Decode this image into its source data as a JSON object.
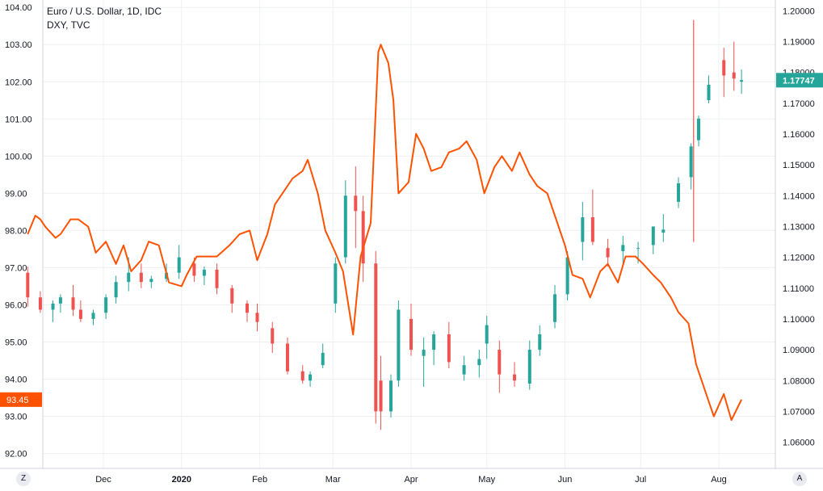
{
  "legend": {
    "title": "Euro / U.S. Dollar, 1D, IDC",
    "subtitle": "DXY, TVC"
  },
  "buttons": {
    "left": "Z",
    "right": "A"
  },
  "colors": {
    "up": "#26a69a",
    "down": "#ef5350",
    "dxy_line": "#ff5200",
    "grid": "#eef0f3",
    "axis_line": "#d1d4dc"
  },
  "chart_data": {
    "type": "line",
    "x_tick_labels": [
      "Dec",
      "2020",
      "Feb",
      "Mar",
      "Apr",
      "May",
      "Jun",
      "Jul",
      "Aug"
    ],
    "left_axis": {
      "label": "",
      "ticks": [
        "104.00",
        "103.00",
        "102.00",
        "101.00",
        "100.00",
        "99.00",
        "98.00",
        "97.00",
        "96.00",
        "95.00",
        "94.00",
        "93.00",
        "92.00"
      ],
      "ylim": [
        91.6,
        104.2
      ],
      "last_value_label": "93.45",
      "last_value": 93.45
    },
    "right_axis": {
      "label": "",
      "ticks": [
        "1.20000",
        "1.19000",
        "1.18000",
        "1.17000",
        "1.16000",
        "1.15000",
        "1.14000",
        "1.13000",
        "1.12000",
        "1.11000",
        "1.10000",
        "1.09000",
        "1.08000",
        "1.07000",
        "1.06000"
      ],
      "ylim": [
        1.0515,
        1.2035
      ],
      "last_value_label": "1.17747",
      "last_value": 1.17747
    },
    "series": [
      {
        "name": "DXY, TVC",
        "axis": "left",
        "kind": "line",
        "x": [
          "2019-11-01",
          "2019-11-04",
          "2019-11-06",
          "2019-11-08",
          "2019-11-12",
          "2019-11-14",
          "2019-11-18",
          "2019-11-21",
          "2019-11-25",
          "2019-11-28",
          "2019-12-02",
          "2019-12-06",
          "2019-12-09",
          "2019-12-12",
          "2019-12-16",
          "2019-12-19",
          "2019-12-23",
          "2019-12-27",
          "2020-01-01",
          "2020-01-03",
          "2020-01-07",
          "2020-01-10",
          "2020-01-15",
          "2020-01-20",
          "2020-01-24",
          "2020-01-28",
          "2020-01-31",
          "2020-02-04",
          "2020-02-07",
          "2020-02-11",
          "2020-02-14",
          "2020-02-18",
          "2020-02-20",
          "2020-02-24",
          "2020-02-27",
          "2020-03-02",
          "2020-03-05",
          "2020-03-09",
          "2020-03-12",
          "2020-03-16",
          "2020-03-19",
          "2020-03-20",
          "2020-03-23",
          "2020-03-25",
          "2020-03-27",
          "2020-03-31",
          "2020-04-03",
          "2020-04-06",
          "2020-04-09",
          "2020-04-13",
          "2020-04-16",
          "2020-04-20",
          "2020-04-23",
          "2020-04-27",
          "2020-04-30",
          "2020-05-04",
          "2020-05-07",
          "2020-05-11",
          "2020-05-14",
          "2020-05-18",
          "2020-05-21",
          "2020-05-25",
          "2020-05-28",
          "2020-06-01",
          "2020-06-04",
          "2020-06-08",
          "2020-06-11",
          "2020-06-15",
          "2020-06-18",
          "2020-06-22",
          "2020-06-25",
          "2020-06-29",
          "2020-07-02",
          "2020-07-06",
          "2020-07-09",
          "2020-07-13",
          "2020-07-16",
          "2020-07-20",
          "2020-07-23",
          "2020-07-27",
          "2020-07-30",
          "2020-08-03",
          "2020-08-06",
          "2020-08-10"
        ],
        "values": [
          97.9,
          98.4,
          98.3,
          98.1,
          97.8,
          97.9,
          98.3,
          98.3,
          98.1,
          97.4,
          97.7,
          97.1,
          97.6,
          96.9,
          97.2,
          97.7,
          97.6,
          96.6,
          96.5,
          96.8,
          97.3,
          97.3,
          97.3,
          97.6,
          97.9,
          98.0,
          97.2,
          97.9,
          98.7,
          99.1,
          99.4,
          99.6,
          99.9,
          99.0,
          98.0,
          97.4,
          96.9,
          95.2,
          97.3,
          98.2,
          102.8,
          103.0,
          102.5,
          101.5,
          99.0,
          99.3,
          100.6,
          100.2,
          99.6,
          99.7,
          100.1,
          100.2,
          100.4,
          99.9,
          99.0,
          99.7,
          100.0,
          99.6,
          100.1,
          99.5,
          99.2,
          99.0,
          98.4,
          97.6,
          96.8,
          96.7,
          96.2,
          96.9,
          97.1,
          96.6,
          97.3,
          97.3,
          97.1,
          96.8,
          96.6,
          96.2,
          95.8,
          95.5,
          94.4,
          93.6,
          93.0,
          93.6,
          92.9,
          93.45
        ]
      },
      {
        "name": "Euro / U.S. Dollar, 1D, IDC",
        "axis": "right",
        "kind": "candlestick",
        "x": [
          "2019-11-01",
          "2019-11-06",
          "2019-11-11",
          "2019-11-14",
          "2019-11-19",
          "2019-11-22",
          "2019-11-27",
          "2019-12-02",
          "2019-12-06",
          "2019-12-11",
          "2019-12-16",
          "2019-12-20",
          "2019-12-26",
          "2019-12-31",
          "2020-01-06",
          "2020-01-10",
          "2020-01-15",
          "2020-01-21",
          "2020-01-27",
          "2020-01-31",
          "2020-02-06",
          "2020-02-12",
          "2020-02-18",
          "2020-02-21",
          "2020-02-26",
          "2020-03-02",
          "2020-03-06",
          "2020-03-10",
          "2020-03-13",
          "2020-03-18",
          "2020-03-20",
          "2020-03-24",
          "2020-03-27",
          "2020-04-01",
          "2020-04-06",
          "2020-04-10",
          "2020-04-16",
          "2020-04-22",
          "2020-04-28",
          "2020-05-01",
          "2020-05-06",
          "2020-05-12",
          "2020-05-18",
          "2020-05-22",
          "2020-05-28",
          "2020-06-02",
          "2020-06-08",
          "2020-06-12",
          "2020-06-18",
          "2020-06-24",
          "2020-06-30",
          "2020-07-06",
          "2020-07-10",
          "2020-07-16",
          "2020-07-21",
          "2020-07-24",
          "2020-07-28",
          "2020-08-03",
          "2020-08-07",
          "2020-08-10"
        ],
        "open": [
          1.115,
          1.107,
          1.103,
          1.105,
          1.107,
          1.103,
          1.1,
          1.102,
          1.107,
          1.112,
          1.115,
          1.112,
          1.113,
          1.115,
          1.118,
          1.114,
          1.116,
          1.11,
          1.105,
          1.102,
          1.097,
          1.092,
          1.083,
          1.08,
          1.085,
          1.105,
          1.12,
          1.14,
          1.135,
          1.118,
          1.08,
          1.07,
          1.08,
          1.1,
          1.088,
          1.09,
          1.095,
          1.082,
          1.085,
          1.092,
          1.09,
          1.082,
          1.079,
          1.09,
          1.099,
          1.108,
          1.125,
          1.133,
          1.123,
          1.122,
          1.123,
          1.124,
          1.128,
          1.138,
          1.146,
          1.158,
          1.171,
          1.184,
          1.18,
          1.177
        ],
        "high": [
          1.117,
          1.109,
          1.106,
          1.108,
          1.111,
          1.106,
          1.103,
          1.108,
          1.114,
          1.12,
          1.118,
          1.114,
          1.118,
          1.124,
          1.12,
          1.117,
          1.118,
          1.111,
          1.106,
          1.105,
          1.099,
          1.094,
          1.085,
          1.083,
          1.092,
          1.12,
          1.145,
          1.1495,
          1.14,
          1.122,
          1.088,
          1.082,
          1.106,
          1.105,
          1.094,
          1.096,
          1.099,
          1.088,
          1.09,
          1.101,
          1.093,
          1.086,
          1.093,
          1.098,
          1.111,
          1.122,
          1.138,
          1.142,
          1.126,
          1.127,
          1.125,
          1.13,
          1.134,
          1.146,
          1.157,
          1.166,
          1.179,
          1.188,
          1.19,
          1.181
        ],
        "low": [
          1.104,
          1.102,
          1.099,
          1.102,
          1.101,
          1.099,
          1.098,
          1.1,
          1.105,
          1.109,
          1.11,
          1.11,
          1.112,
          1.113,
          1.112,
          1.111,
          1.108,
          1.102,
          1.099,
          1.096,
          1.089,
          1.082,
          1.079,
          1.078,
          1.084,
          1.102,
          1.118,
          1.123,
          1.112,
          1.066,
          1.064,
          1.068,
          1.078,
          1.088,
          1.078,
          1.085,
          1.084,
          1.08,
          1.081,
          1.087,
          1.076,
          1.078,
          1.077,
          1.088,
          1.097,
          1.106,
          1.119,
          1.124,
          1.117,
          1.118,
          1.118,
          1.121,
          1.125,
          1.136,
          1.142,
          1.156,
          1.17,
          1.172,
          1.174,
          1.173
        ],
        "close": [
          1.107,
          1.103,
          1.105,
          1.107,
          1.103,
          1.1,
          1.102,
          1.107,
          1.112,
          1.115,
          1.112,
          1.113,
          1.115,
          1.12,
          1.114,
          1.116,
          1.11,
          1.105,
          1.102,
          1.099,
          1.092,
          1.083,
          1.08,
          1.082,
          1.089,
          1.118,
          1.14,
          1.135,
          1.118,
          1.07,
          1.07,
          1.08,
          1.103,
          1.09,
          1.09,
          1.095,
          1.086,
          1.085,
          1.087,
          1.098,
          1.082,
          1.08,
          1.09,
          1.095,
          1.108,
          1.12,
          1.133,
          1.125,
          1.12,
          1.124,
          1.123,
          1.13,
          1.129,
          1.144,
          1.156,
          1.165,
          1.176,
          1.179,
          1.178,
          1.1775
        ]
      }
    ],
    "grid": true,
    "vertical_marker": {
      "x": "2020-07-22",
      "from": 1.125,
      "to": 1.197
    }
  }
}
